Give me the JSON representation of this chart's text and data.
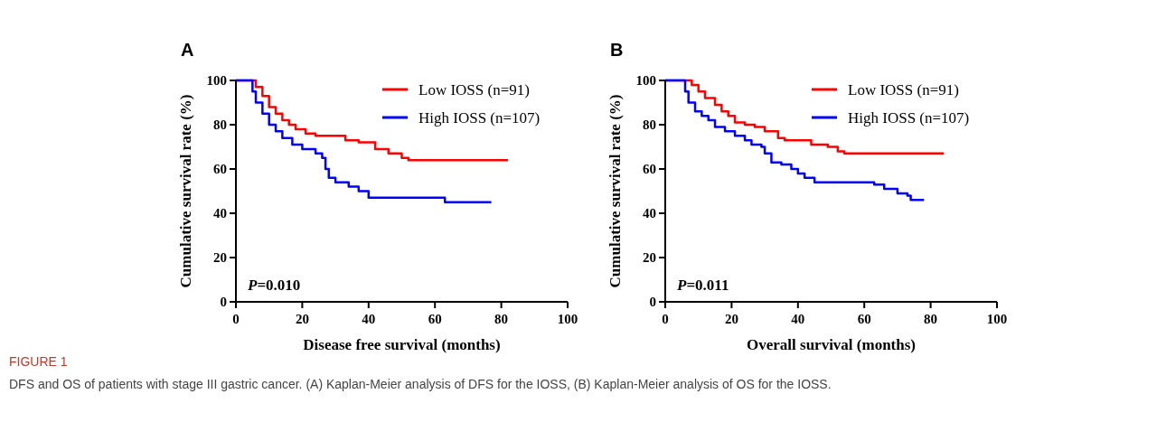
{
  "chart_data": [
    {
      "type": "step",
      "title": "A",
      "xlabel": "Disease free survival (months)",
      "ylabel": "Cumulative survival rate (%)",
      "xlim": [
        0,
        100
      ],
      "xticks": [
        0,
        20,
        40,
        60,
        80,
        100
      ],
      "ylim": [
        0,
        100
      ],
      "yticks": [
        0,
        20,
        40,
        60,
        80,
        100
      ],
      "legend": "top right",
      "annotations": [
        "P=0.010",
        "FIGURE 1",
        "DFS and OS of patients with stage III gastric cancer. (A) Kaplan-Meier analysis of DFS for the IOSS, (B) Kaplan-Meier analysis of OS for the IOSS."
      ],
      "series": [
        {
          "name": "Low IOSS (n=91)",
          "color": "#ff0000",
          "x": [
            0,
            5,
            6,
            8,
            10,
            12,
            14,
            16,
            18,
            21,
            24,
            33,
            37,
            42,
            46,
            50,
            52,
            82
          ],
          "values": [
            100,
            100,
            97,
            93,
            88,
            85,
            82,
            80,
            78,
            76,
            75,
            73,
            72,
            69,
            67,
            65,
            64,
            64
          ]
        },
        {
          "name": "High IOSS (n=107)",
          "color": "#0000ff",
          "x": [
            0,
            4,
            5,
            6,
            8,
            10,
            12,
            14,
            17,
            20,
            24,
            26,
            27,
            28,
            30,
            34,
            37,
            40,
            56,
            62,
            63,
            77
          ],
          "values": [
            100,
            100,
            95,
            90,
            85,
            80,
            77,
            74,
            71,
            69,
            67,
            65,
            60,
            56,
            54,
            52,
            50,
            47,
            47,
            47,
            45,
            45
          ]
        }
      ]
    },
    {
      "type": "step",
      "title": "B",
      "xlabel": "Overall survival (months)",
      "ylabel": "Cumulative survival rate (%)",
      "xlim": [
        0,
        100
      ],
      "xticks": [
        0,
        20,
        40,
        60,
        80,
        100
      ],
      "ylim": [
        0,
        100
      ],
      "yticks": [
        0,
        20,
        40,
        60,
        80,
        100
      ],
      "legend": "top right",
      "annotations": [
        "P=0.011"
      ],
      "series": [
        {
          "name": "Low IOSS (n=91)",
          "color": "#ff0000",
          "x": [
            0,
            7,
            8,
            10,
            12,
            15,
            17,
            19,
            21,
            24,
            27,
            30,
            34,
            36,
            44,
            49,
            52,
            54,
            84
          ],
          "values": [
            100,
            100,
            98,
            95,
            92,
            89,
            86,
            84,
            81,
            80,
            79,
            77,
            74,
            73,
            71,
            70,
            68,
            67,
            67
          ]
        },
        {
          "name": "High IOSS (n=107)",
          "color": "#0000ff",
          "x": [
            0,
            5,
            6,
            7,
            9,
            11,
            13,
            15,
            18,
            21,
            24,
            26,
            29,
            30,
            32,
            35,
            38,
            40,
            42,
            45,
            60,
            63,
            66,
            70,
            73,
            74,
            78
          ],
          "values": [
            100,
            100,
            95,
            90,
            86,
            84,
            82,
            79,
            77,
            75,
            73,
            71,
            70,
            67,
            63,
            62,
            60,
            58,
            56,
            54,
            54,
            53,
            51,
            49,
            48,
            46,
            46
          ]
        }
      ]
    }
  ]
}
